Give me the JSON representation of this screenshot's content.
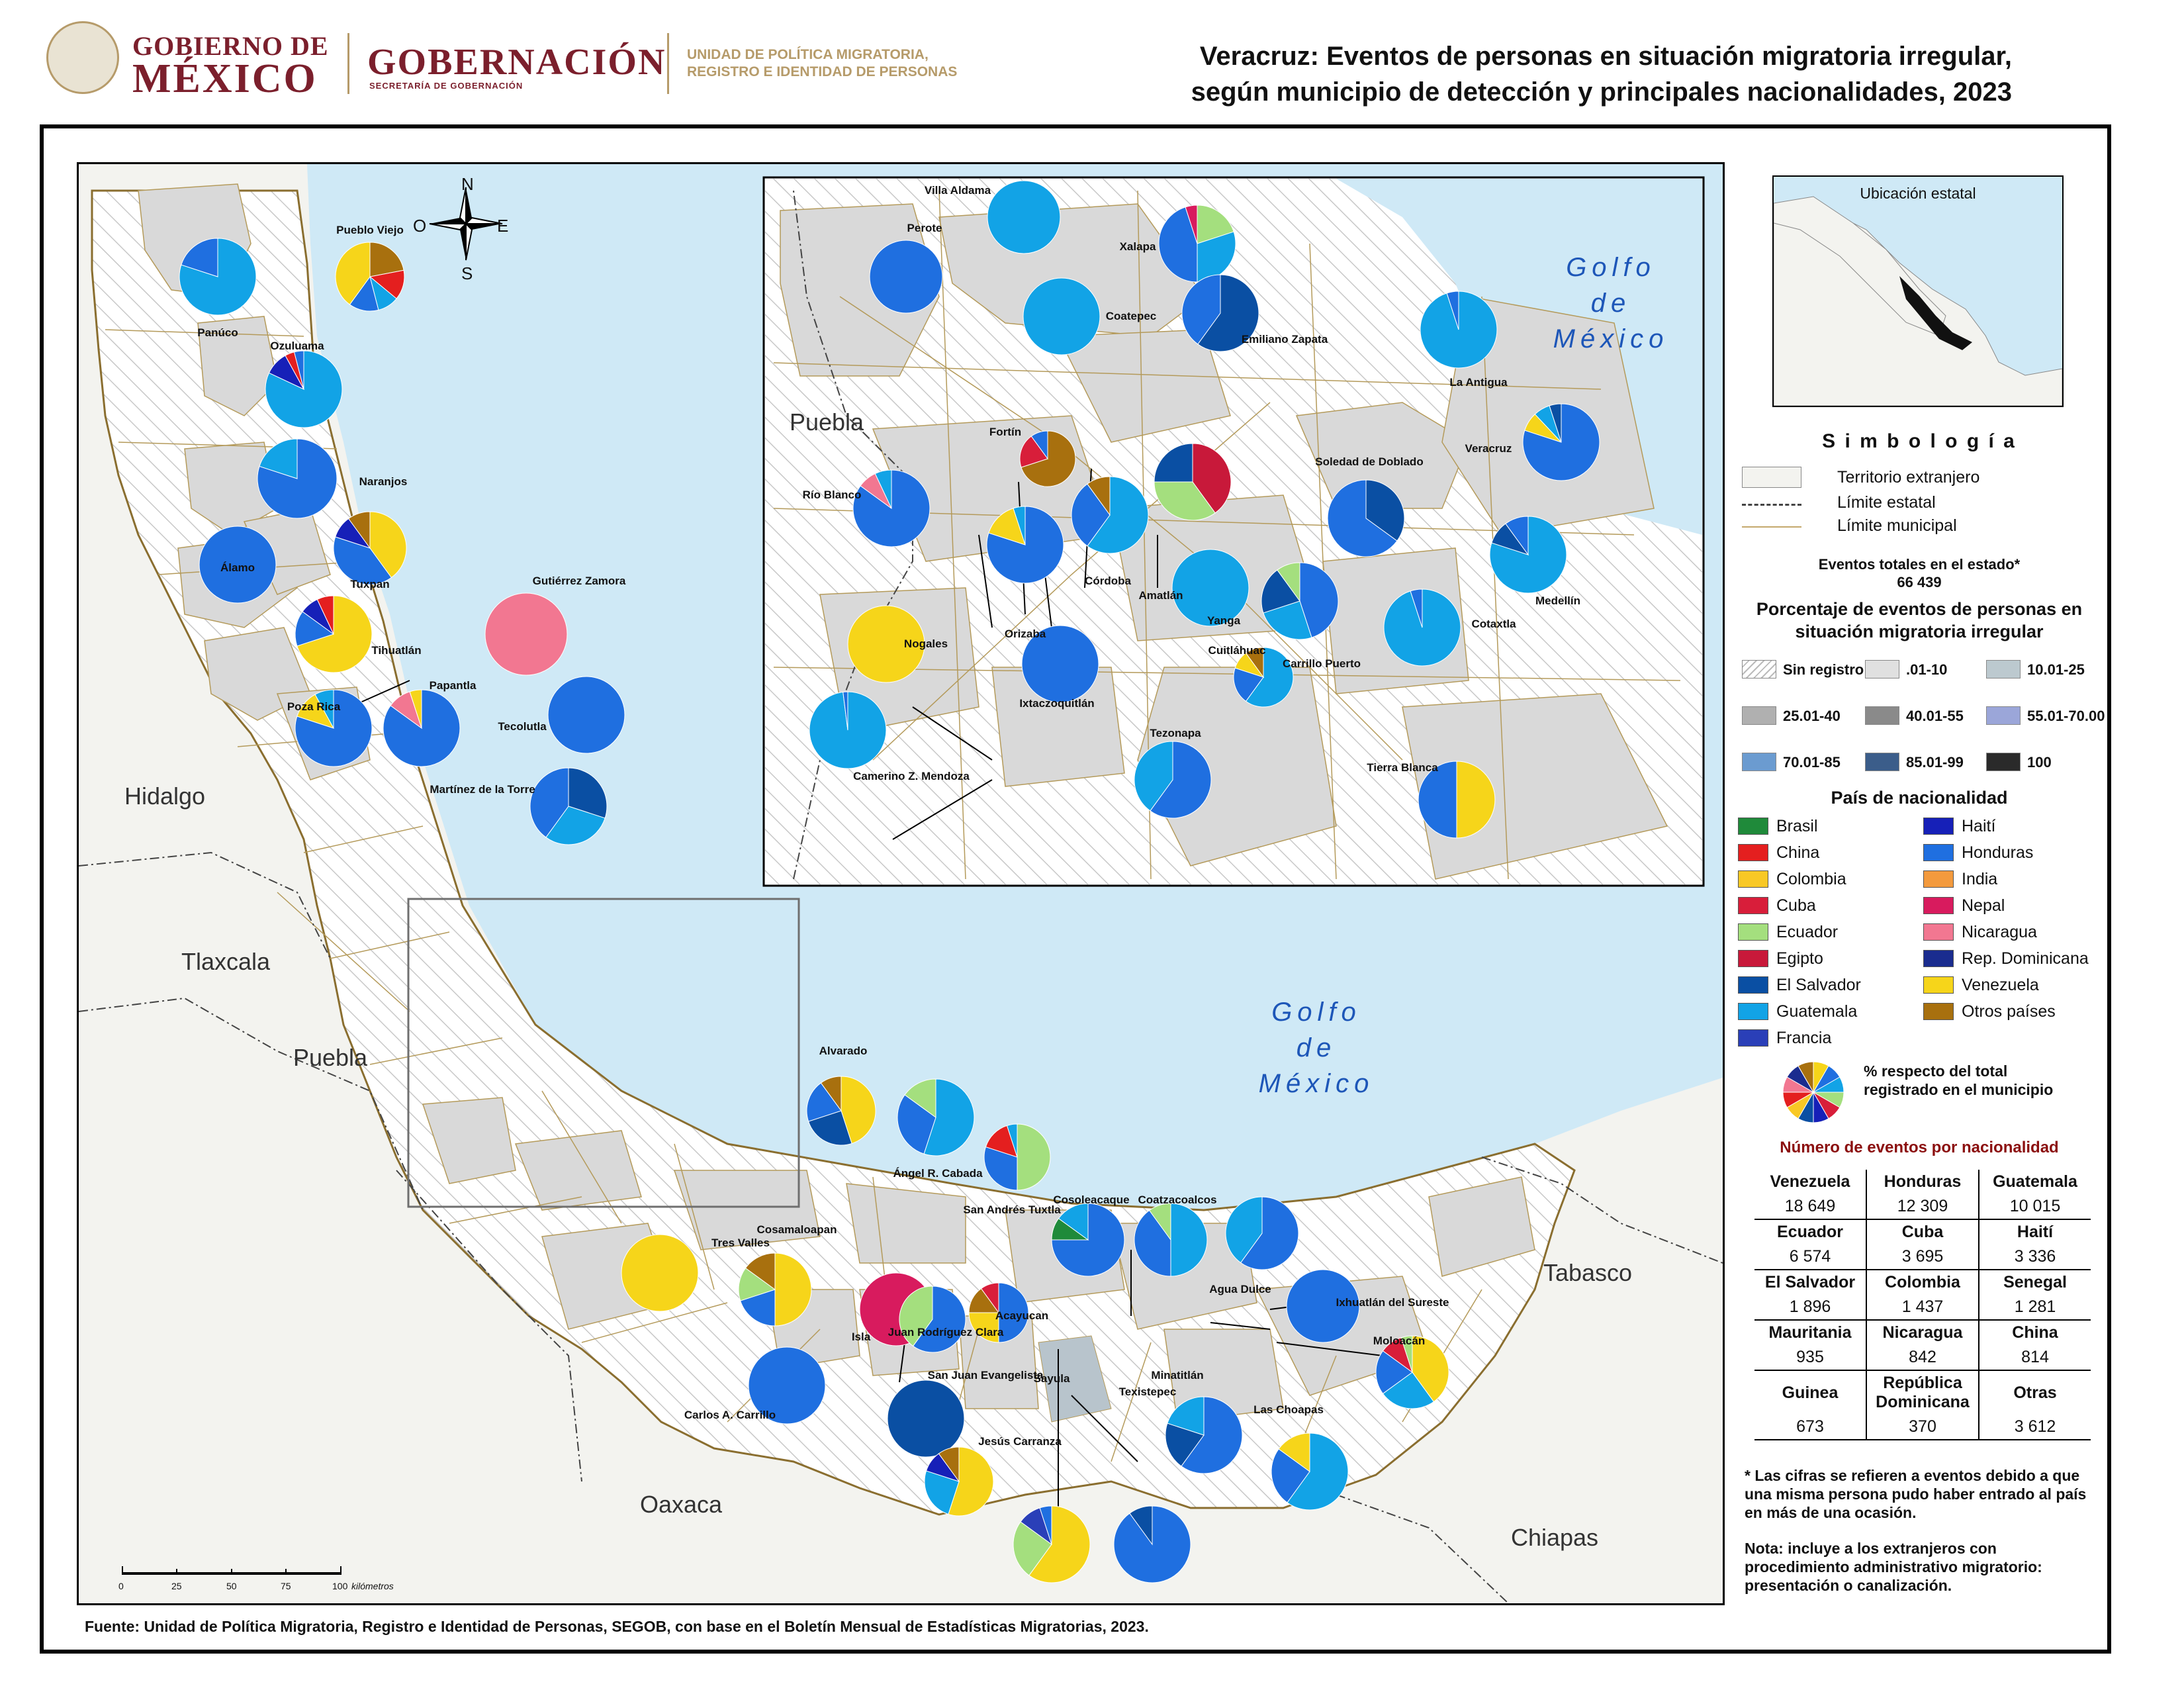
{
  "header": {
    "gob_line1": "GOBIERNO DE",
    "gob_line2": "MÉXICO",
    "gobernacion": "GOBERNACIÓN",
    "gobernacion_sub": "SECRETARÍA DE GOBERNACIÓN",
    "upm_line1": "UNIDAD DE POLÍTICA MIGRATORIA,",
    "upm_line2": "REGISTRO E IDENTIDAD DE PERSONAS",
    "title_line1": "Veracruz: Eventos de personas en situación migratoria irregular,",
    "title_line2": "según municipio de detección y principales nacionalidades, 2023"
  },
  "colors": {
    "Venezuela": "#f6d51a",
    "Honduras": "#1f6fe0",
    "Guatemala": "#12a3e6",
    "Ecuador": "#a4df7e",
    "Cuba": "#d81e3a",
    "Haití": "#1620b8",
    "El Salvador": "#0a4fa3",
    "Colombia": "#f8c825",
    "China": "#e41f1f",
    "Nicaragua": "#f27791",
    "Rep. Dominicana": "#1a2c8f",
    "Egipto": "#c8193a",
    "Brasil": "#1f8a3a",
    "Francia": "#2a3fb8",
    "India": "#f39a3d",
    "Nepal": "#d81b5e",
    "Otros países": "#a8700e",
    "sea": "#cfe9f6",
    "foreign": "#f2f2ee",
    "state": "#dcdcdc",
    "insetRect": "#6f6f6f"
  },
  "map": {
    "compass": {
      "n": "N",
      "s": "S",
      "e": "E",
      "o": "O"
    },
    "states": [
      "Hidalgo",
      "Tlaxcala",
      "Puebla",
      "Oaxaca",
      "Chiapas",
      "Tabasco"
    ],
    "gulf_main": [
      "Golfo",
      "de",
      "México"
    ],
    "gulf_inset": [
      "Golfo",
      "de",
      "México"
    ],
    "inset_state": "Puebla",
    "scale": {
      "ticks": [
        "0",
        "25",
        "50",
        "75",
        "100"
      ],
      "unit": "kilómetros"
    },
    "municipalities": [
      {
        "name": "Pueblo Viejo",
        "pie": [
          [
            "Otros países",
            22
          ],
          [
            "China",
            14
          ],
          [
            "Guatemala",
            10
          ],
          [
            "Honduras",
            14
          ],
          [
            "Venezuela",
            40
          ]
        ]
      },
      {
        "name": "Panúco",
        "pie": [
          [
            "Guatemala",
            80
          ],
          [
            "Honduras",
            20
          ]
        ]
      },
      {
        "name": "Ozuluama",
        "pie": [
          [
            "Guatemala",
            82
          ],
          [
            "Haití",
            10
          ],
          [
            "China",
            4
          ],
          [
            "Honduras",
            4
          ]
        ]
      },
      {
        "name": "Naranjos",
        "pie": [
          [
            "Honduras",
            80
          ],
          [
            "Guatemala",
            20
          ]
        ]
      },
      {
        "name": "Álamo",
        "pie": [
          [
            "Honduras",
            100
          ]
        ]
      },
      {
        "name": "Tuxpan",
        "pie": [
          [
            "Venezuela",
            40
          ],
          [
            "Honduras",
            40
          ],
          [
            "Haití",
            10
          ],
          [
            "Otros países",
            10
          ]
        ]
      },
      {
        "name": "Gutiérrez Zamora",
        "pie": [
          [
            "Nicaragua",
            100
          ]
        ]
      },
      {
        "name": "Tihuatlán",
        "pie": [
          [
            "Venezuela",
            70
          ],
          [
            "Honduras",
            15
          ],
          [
            "Haití",
            8
          ],
          [
            "China",
            7
          ]
        ]
      },
      {
        "name": "Poza Rica",
        "pie": [
          [
            "Honduras",
            80
          ],
          [
            "Venezuela",
            12
          ],
          [
            "Guatemala",
            8
          ]
        ]
      },
      {
        "name": "Papantla",
        "pie": [
          [
            "Honduras",
            85
          ],
          [
            "Nicaragua",
            10
          ],
          [
            "Venezuela",
            5
          ]
        ]
      },
      {
        "name": "Tecolutla",
        "pie": [
          [
            "Honduras",
            100
          ]
        ]
      },
      {
        "name": "Martínez de la Torre",
        "pie": [
          [
            "El Salvador",
            30
          ],
          [
            "Guatemala",
            30
          ],
          [
            "Honduras",
            40
          ]
        ]
      },
      {
        "name": "Villa Aldama",
        "pie": [
          [
            "Guatemala",
            100
          ]
        ]
      },
      {
        "name": "Perote",
        "pie": [
          [
            "Honduras",
            100
          ]
        ]
      },
      {
        "name": "Xalapa",
        "pie": [
          [
            "Ecuador",
            20
          ],
          [
            "Guatemala",
            30
          ],
          [
            "Honduras",
            45
          ],
          [
            "Nepal",
            5
          ]
        ]
      },
      {
        "name": "Coatepec",
        "pie": [
          [
            "Guatemala",
            100
          ]
        ]
      },
      {
        "name": "Emiliano Zapata",
        "pie": [
          [
            "El Salvador",
            60
          ],
          [
            "Honduras",
            40
          ]
        ]
      },
      {
        "name": "La Antigua",
        "pie": [
          [
            "Guatemala",
            95
          ],
          [
            "Honduras",
            5
          ]
        ]
      },
      {
        "name": "Fortín",
        "pie": [
          [
            "Otros países",
            70
          ],
          [
            "Cuba",
            20
          ],
          [
            "Honduras",
            10
          ]
        ]
      },
      {
        "name": "Río Blanco",
        "pie": [
          [
            "Honduras",
            85
          ],
          [
            "Nicaragua",
            8
          ],
          [
            "Guatemala",
            7
          ]
        ]
      },
      {
        "name": "Veracruz",
        "pie": [
          [
            "Honduras",
            80
          ],
          [
            "Venezuela",
            8
          ],
          [
            "Guatemala",
            7
          ],
          [
            "El Salvador",
            5
          ]
        ]
      },
      {
        "name": "Soledad de Doblado",
        "pie": [
          [
            "El Salvador",
            35
          ],
          [
            "Honduras",
            65
          ]
        ]
      },
      {
        "name": "Córdoba",
        "pie": [
          [
            "Guatemala",
            60
          ],
          [
            "Honduras",
            30
          ],
          [
            "Otros países",
            10
          ]
        ]
      },
      {
        "name": "Amatlán",
        "pie": [
          [
            "Egipto",
            40
          ],
          [
            "Ecuador",
            35
          ],
          [
            "El Salvador",
            25
          ]
        ]
      },
      {
        "name": "Yanga",
        "pie": [
          [
            "Guatemala",
            100
          ]
        ]
      },
      {
        "name": "Medellín",
        "pie": [
          [
            "Guatemala",
            80
          ],
          [
            "El Salvador",
            10
          ],
          [
            "Honduras",
            10
          ]
        ]
      },
      {
        "name": "Orizaba",
        "pie": [
          [
            "Honduras",
            80
          ],
          [
            "Venezuela",
            15
          ],
          [
            "Guatemala",
            5
          ]
        ]
      },
      {
        "name": "Nogales",
        "pie": [
          [
            "Venezuela",
            100
          ]
        ]
      },
      {
        "name": "Cuitláhuac",
        "pie": [
          [
            "Honduras",
            45
          ],
          [
            "Guatemala",
            25
          ],
          [
            "El Salvador",
            20
          ],
          [
            "Ecuador",
            10
          ]
        ]
      },
      {
        "name": "Cotaxtla",
        "pie": [
          [
            "Guatemala",
            95
          ],
          [
            "Honduras",
            5
          ]
        ]
      },
      {
        "name": "Ixtaczoquitlán",
        "pie": [
          [
            "Honduras",
            100
          ]
        ]
      },
      {
        "name": "Carrillo Puerto",
        "pie": [
          [
            "Guatemala",
            60
          ],
          [
            "Honduras",
            20
          ],
          [
            "Venezuela",
            10
          ],
          [
            "Otros países",
            10
          ]
        ]
      },
      {
        "name": "Camerino Z. Mendoza",
        "pie": [
          [
            "Guatemala",
            98
          ],
          [
            "Honduras",
            2
          ]
        ]
      },
      {
        "name": "Tezonapa",
        "pie": [
          [
            "Honduras",
            60
          ],
          [
            "Guatemala",
            40
          ]
        ]
      },
      {
        "name": "Tierra Blanca",
        "pie": [
          [
            "Venezuela",
            50
          ],
          [
            "Honduras",
            50
          ]
        ]
      },
      {
        "name": "Alvarado",
        "pie": [
          [
            "Venezuela",
            45
          ],
          [
            "El Salvador",
            25
          ],
          [
            "Honduras",
            20
          ],
          [
            "Otros países",
            10
          ]
        ]
      },
      {
        "name": "Ángel R. Cabada",
        "pie": [
          [
            "Guatemala",
            55
          ],
          [
            "Honduras",
            30
          ],
          [
            "Ecuador",
            15
          ]
        ]
      },
      {
        "name": "San Andrés Tuxtla",
        "pie": [
          [
            "Ecuador",
            50
          ],
          [
            "Honduras",
            30
          ],
          [
            "China",
            15
          ],
          [
            "Guatemala",
            5
          ]
        ]
      },
      {
        "name": "Tres Valles",
        "pie": [
          [
            "Venezuela",
            100
          ]
        ]
      },
      {
        "name": "Cosamaloapan",
        "pie": [
          [
            "Venezuela",
            50
          ],
          [
            "Honduras",
            20
          ],
          [
            "Ecuador",
            15
          ],
          [
            "Otros países",
            15
          ]
        ]
      },
      {
        "name": "Isla",
        "pie": [
          [
            "Nepal",
            100
          ]
        ]
      },
      {
        "name": "Juan Rodríguez Clara",
        "pie": [
          [
            "Honduras",
            60
          ],
          [
            "Ecuador",
            40
          ]
        ]
      },
      {
        "name": "Acayucan",
        "pie": [
          [
            "Honduras",
            50
          ],
          [
            "Venezuela",
            25
          ],
          [
            "Otros países",
            15
          ],
          [
            "Cuba",
            10
          ]
        ]
      },
      {
        "name": "Cosoleacaque",
        "pie": [
          [
            "Honduras",
            75
          ],
          [
            "Brasil",
            10
          ],
          [
            "Guatemala",
            15
          ]
        ]
      },
      {
        "name": "Coatzacoalcos",
        "pie": [
          [
            "Guatemala",
            50
          ],
          [
            "Honduras",
            40
          ],
          [
            "Ecuador",
            10
          ]
        ]
      },
      {
        "name": "Agua Dulce",
        "pie": [
          [
            "Honduras",
            60
          ],
          [
            "Guatemala",
            40
          ]
        ]
      },
      {
        "name": "Ixhuatlán del Sureste",
        "pie": [
          [
            "Honduras",
            100
          ]
        ]
      },
      {
        "name": "Moloacán",
        "pie": [
          [
            "Venezuela",
            40
          ],
          [
            "Guatemala",
            25
          ],
          [
            "Honduras",
            20
          ],
          [
            "Cuba",
            10
          ],
          [
            "Ecuador",
            5
          ]
        ]
      },
      {
        "name": "Carlos A. Carrillo",
        "pie": [
          [
            "Honduras",
            100
          ]
        ]
      },
      {
        "name": "San Juan Evangelista",
        "pie": [
          [
            "El Salvador",
            100
          ]
        ]
      },
      {
        "name": "Sayula",
        "pie": [
          [
            "Venezuela",
            60
          ],
          [
            "Ecuador",
            25
          ],
          [
            "Francia",
            10
          ],
          [
            "Honduras",
            5
          ]
        ]
      },
      {
        "name": "Jesús Carranza",
        "pie": [
          [
            "Venezuela",
            55
          ],
          [
            "Guatemala",
            25
          ],
          [
            "Haití",
            10
          ],
          [
            "Otros países",
            10
          ]
        ]
      },
      {
        "name": "Texistepec",
        "pie": [
          [
            "Honduras",
            90
          ],
          [
            "El Salvador",
            10
          ]
        ]
      },
      {
        "name": "Minatitlán",
        "pie": [
          [
            "Honduras",
            60
          ],
          [
            "El Salvador",
            20
          ],
          [
            "Guatemala",
            20
          ]
        ]
      },
      {
        "name": "Las Choapas",
        "pie": [
          [
            "Guatemala",
            60
          ],
          [
            "Honduras",
            25
          ],
          [
            "Venezuela",
            15
          ]
        ]
      }
    ]
  },
  "legend": {
    "ubicacion_title": "Ubicación estatal",
    "simbologia": "S i m b o l o g í a",
    "territorio": "Territorio extranjero",
    "lim_estatal": "Límite estatal",
    "lim_municipal": "Límite municipal",
    "total_label": "Eventos totales en el estado*",
    "total_value": "66 439",
    "pct_title_1": "Porcentaje de eventos de personas en",
    "pct_title_2": "situación migratoria irregular",
    "pct_classes": [
      "Sin registro",
      ".01-10",
      "10.01-25",
      "25.01-40",
      "40.01-55",
      "55.01-70.00",
      "70.01-85",
      "85.01-99",
      "100"
    ],
    "pct_colors": [
      "#ffffff",
      "#e0e0e0",
      "#bcc9cf",
      "#b0b0b0",
      "#8a8a8a",
      "#9ba6d9",
      "#6b9bd0",
      "#3b5d8a",
      "#2a2a2a"
    ],
    "pais_title": "País de nacionalidad",
    "paises_col1": [
      "Brasil",
      "China",
      "Colombia",
      "Cuba",
      "Ecuador",
      "Egipto",
      "El Salvador",
      "Guatemala",
      "Francia"
    ],
    "paises_col2": [
      "Haití",
      "Honduras",
      "India",
      "Nepal",
      "Nicaragua",
      "Rep. Dominicana",
      "Venezuela",
      "Otros países"
    ],
    "pie_note_1": "%  respecto del total",
    "pie_note_2": "registrado en el municipio",
    "count_title": "Número de eventos por nacionalidad",
    "counts": [
      [
        [
          "Venezuela",
          "18 649"
        ],
        [
          "Honduras",
          "12 309"
        ],
        [
          "Guatemala",
          "10 015"
        ]
      ],
      [
        [
          "Ecuador",
          "6 574"
        ],
        [
          "Cuba",
          "3 695"
        ],
        [
          "Haití",
          "3 336"
        ]
      ],
      [
        [
          "El Salvador",
          "1 896"
        ],
        [
          "Colombia",
          "1 437"
        ],
        [
          "Senegal",
          "1 281"
        ]
      ],
      [
        [
          "Mauritania",
          "935"
        ],
        [
          "Nicaragua",
          "842"
        ],
        [
          "China",
          "814"
        ]
      ],
      [
        [
          "Guinea",
          "673"
        ],
        [
          "República Dominicana",
          "370"
        ],
        [
          "Otras",
          "3 612"
        ]
      ]
    ],
    "footnote": "* Las cifras se refieren a eventos debido a que una misma persona pudo haber entrado al país en más de una ocasión.",
    "nota": "Nota: incluye a los extranjeros con procedimiento administrativo migratorio: presentación o canalización."
  },
  "source": "Fuente: Unidad de Política Migratoria, Registro e Identidad de Personas, SEGOB, con base en el Boletín Mensual de Estadísticas Migratorias, 2023."
}
